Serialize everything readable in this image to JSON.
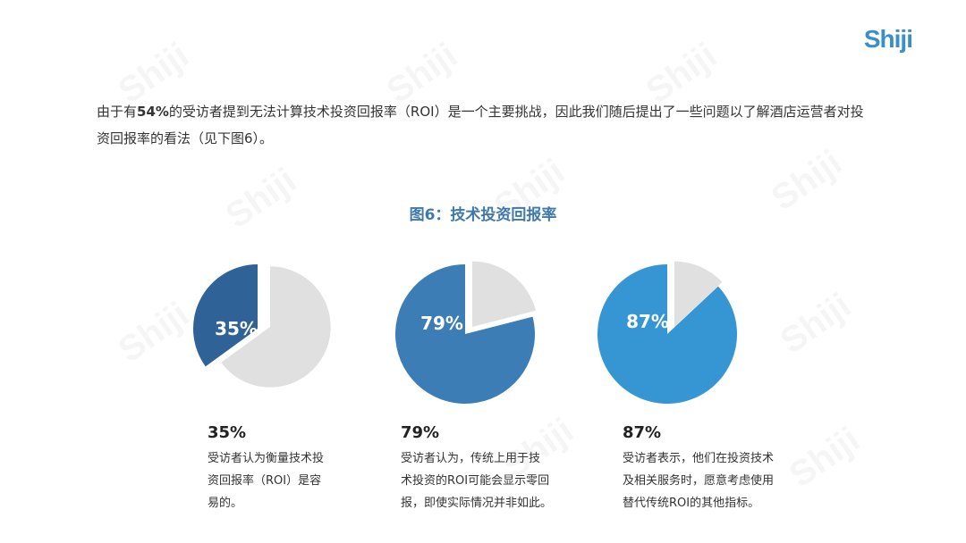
{
  "logo": {
    "text": "Shiji"
  },
  "watermark_text": "Shiji",
  "intro": {
    "part1": "由于有",
    "highlight": "54%",
    "part2": "的受访者提到无法计算技术投资回报率（ROI）是一个主要挑战，因此我们随后提出了一些问题以了解酒店运营者对投资回报率的看法（见下图6）。"
  },
  "figure": {
    "title": "图6：技术投资回报率"
  },
  "chart_data": [
    {
      "type": "pie",
      "value": 35,
      "label": "35%",
      "color": "#2f6397",
      "rest_color": "#e0e0e0"
    },
    {
      "type": "pie",
      "value": 79,
      "label": "79%",
      "color": "#3d7db6",
      "rest_color": "#e0e0e0"
    },
    {
      "type": "pie",
      "value": 87,
      "label": "87%",
      "color": "#3696d3",
      "rest_color": "#e0e0e0"
    }
  ],
  "stats": [
    {
      "pct": "35%",
      "desc_lines": [
        "受访者认为衡量技术投",
        "资回报率（ROI）是容",
        "易的。"
      ]
    },
    {
      "pct": "79%",
      "desc_lines": [
        "受访者认为，传统上用于技",
        "术投资的ROI可能会显示零回",
        "报，即使实际情况并非如此。"
      ]
    },
    {
      "pct": "87%",
      "desc_lines": [
        "受访者表示，他们在投资技术",
        "及相关服务时，愿意考虑使用",
        "替代传统ROI的其他指标。"
      ]
    }
  ]
}
